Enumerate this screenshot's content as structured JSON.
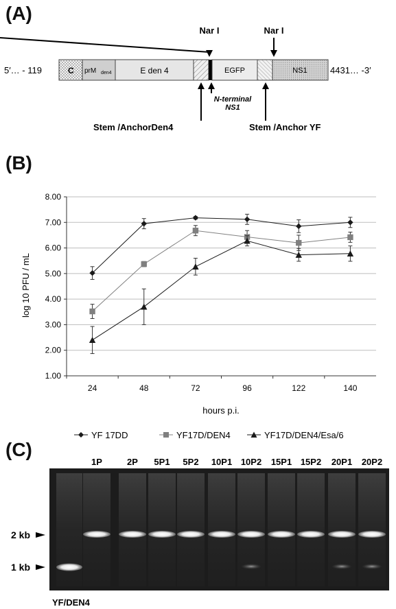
{
  "panel_a": {
    "label": "(A)",
    "left_end": "5′… - 119",
    "right_end": "4431… -3′",
    "segments": [
      "C",
      "prM",
      "den4",
      "E den 4",
      "EGFP",
      "NS1"
    ],
    "narI_1": "Nar I",
    "narI_2": "Nar I",
    "nterm_line1": "N-terminal",
    "nterm_line2": "NS1",
    "stem_den4": "Stem /AnchorDen4",
    "stem_yf": "Stem /Anchor YF"
  },
  "panel_b": {
    "label": "(B)"
  },
  "chart_data": {
    "type": "line",
    "ylabel": "log 10 PFU / mL",
    "xlabel": "hours  p.i.",
    "categories": [
      "24",
      "48",
      "72",
      "96",
      "122",
      "140"
    ],
    "ylim": [
      1.0,
      8.0
    ],
    "yticks": [
      "1.00",
      "2.00",
      "3.00",
      "4.00",
      "5.00",
      "6.00",
      "7.00",
      "8.00"
    ],
    "grid": true,
    "legend_position": "bottom",
    "series": [
      {
        "name": "YF 17DD",
        "marker": "diamond",
        "color": "#1a1a1a",
        "values": [
          5.02,
          6.95,
          7.18,
          7.12,
          6.85,
          7.0
        ],
        "errors": [
          0.25,
          0.2,
          0.05,
          0.2,
          0.25,
          0.2
        ]
      },
      {
        "name": "YF17D/DEN4",
        "marker": "square",
        "color": "#808080",
        "values": [
          3.52,
          5.37,
          6.68,
          6.43,
          6.2,
          6.42
        ],
        "errors": [
          0.28,
          0.1,
          0.2,
          0.25,
          0.3,
          0.2
        ]
      },
      {
        "name": "YF17D/DEN4/Esa/6",
        "marker": "triangle",
        "color": "#1a1a1a",
        "values": [
          2.4,
          3.7,
          5.27,
          6.28,
          5.73,
          5.78
        ],
        "errors": [
          0.53,
          0.7,
          0.33,
          0.2,
          0.25,
          0.3
        ]
      }
    ]
  },
  "panel_c": {
    "label": "(C)",
    "lanes": [
      "1P",
      "2P",
      "5P1",
      "5P2",
      "10P1",
      "10P2",
      "15P1",
      "15P2",
      "20P1",
      "20P2"
    ],
    "marker_2kb": "2 kb",
    "marker_1kb": "1 kb",
    "bottom_label": "YF/DEN4"
  }
}
